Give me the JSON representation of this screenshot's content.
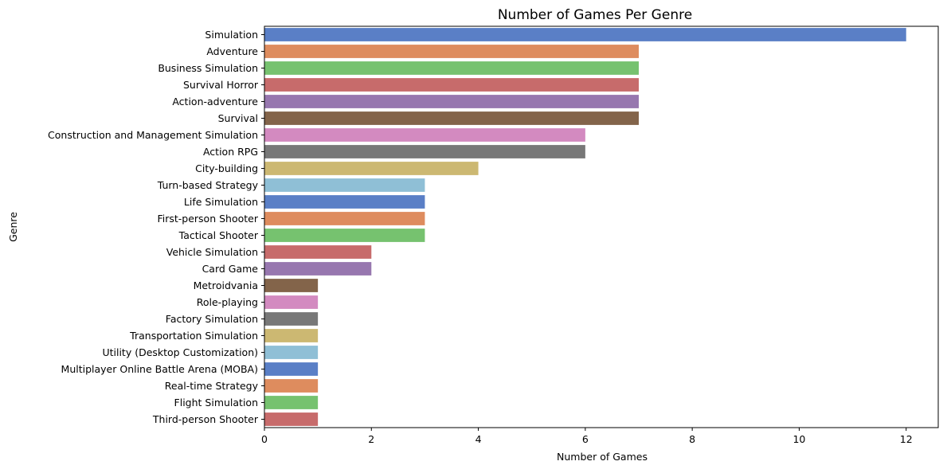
{
  "chart_data": {
    "type": "bar",
    "orientation": "horizontal",
    "title": "Number of Games Per Genre",
    "xlabel": "Number of Games",
    "ylabel": "Genre",
    "xlim": [
      0,
      12.6
    ],
    "xticks": [
      0,
      2,
      4,
      6,
      8,
      10,
      12
    ],
    "grid": false,
    "legend": "none",
    "categories": [
      "Simulation",
      "Adventure",
      "Business Simulation",
      "Survival Horror",
      "Action-adventure",
      "Survival",
      "Construction and Management Simulation",
      "Action RPG",
      "City-building",
      "Turn-based Strategy",
      "Life Simulation",
      "First-person Shooter",
      "Tactical Shooter",
      "Vehicle Simulation",
      "Card Game",
      "Metroidvania",
      "Role-playing",
      "Factory Simulation",
      "Transportation Simulation",
      "Utility (Desktop Customization)",
      "Multiplayer Online Battle Arena (MOBA)",
      "Real-time Strategy",
      "Flight Simulation",
      "Third-person Shooter"
    ],
    "values": [
      12,
      7,
      7,
      7,
      7,
      7,
      6,
      6,
      4,
      3,
      3,
      3,
      3,
      2,
      2,
      1,
      1,
      1,
      1,
      1,
      1,
      1,
      1,
      1
    ],
    "palette": [
      "#5a7fc6",
      "#de8c5e",
      "#76c26f",
      "#c76b6b",
      "#9777af",
      "#83644a",
      "#d38ac0",
      "#787878",
      "#ccb872",
      "#8fbfd6"
    ]
  }
}
